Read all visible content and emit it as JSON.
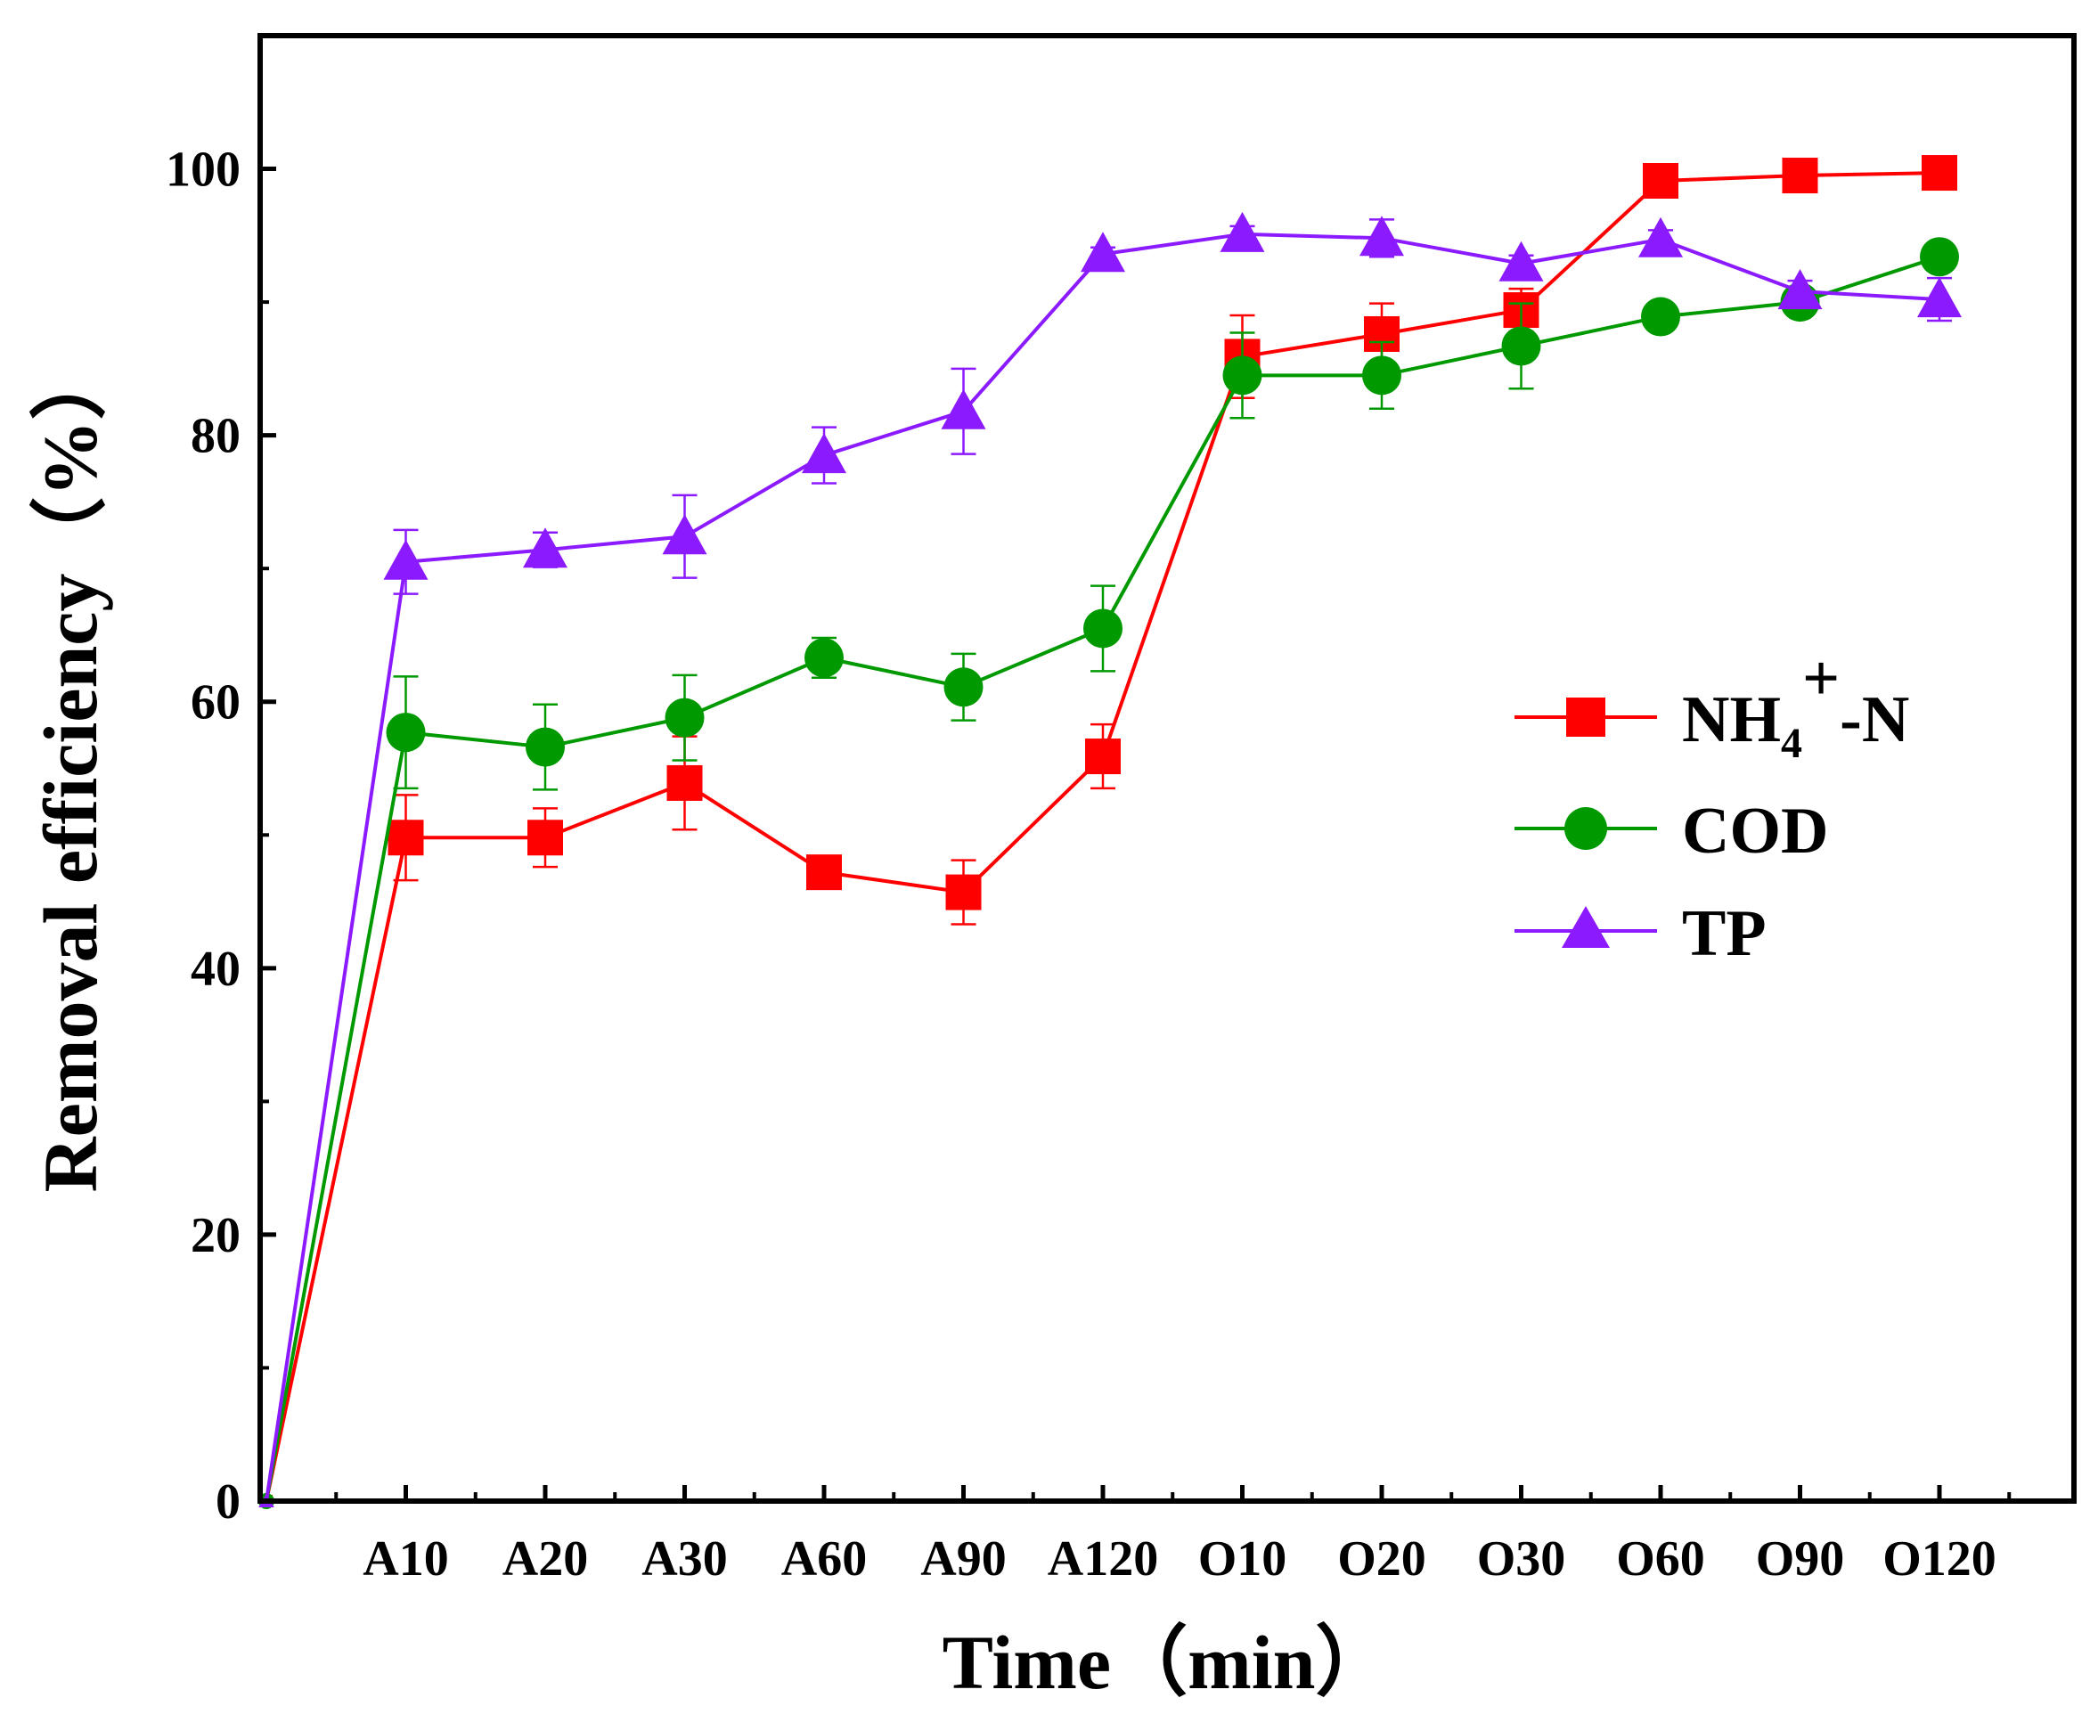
{
  "chart_data": {
    "type": "line",
    "title": "",
    "xlabel": "Time（min）",
    "ylabel": "Removal efficiency（%）",
    "ylim": [
      0,
      110
    ],
    "yticks": [
      0,
      20,
      40,
      60,
      80,
      100
    ],
    "categories": [
      "",
      "A10",
      "A20",
      "A30",
      "A60",
      "A90",
      "A120",
      "O10",
      "O20",
      "O30",
      "O60",
      "O90",
      "O120"
    ],
    "legend_position": "right",
    "legend": {
      "nh4_main": "NH",
      "nh4_sub": "4",
      "nh4_sup": "+",
      "nh4_tail": "-N"
    },
    "series": [
      {
        "name": "NH4+-N",
        "color": "#ff0000",
        "marker": "square",
        "values": [
          0,
          49.8,
          49.8,
          53.9,
          47.2,
          45.7,
          55.9,
          85.9,
          87.6,
          89.4,
          99.1,
          99.5,
          99.7
        ],
        "errors": [
          0,
          3.2,
          2.2,
          3.5,
          1.0,
          2.4,
          2.4,
          3.1,
          2.3,
          1.6,
          0.6,
          0.4,
          0.4
        ]
      },
      {
        "name": "COD",
        "color": "#009900",
        "marker": "circle",
        "values": [
          0,
          57.7,
          56.6,
          58.8,
          63.3,
          61.1,
          65.5,
          84.5,
          84.5,
          86.7,
          88.9,
          90.0,
          93.4
        ],
        "errors": [
          0,
          4.2,
          3.2,
          3.2,
          1.5,
          2.5,
          3.2,
          3.2,
          2.5,
          3.2,
          1.0,
          0.8,
          0.8
        ]
      },
      {
        "name": "TP",
        "color": "#8c1aff",
        "marker": "triangle",
        "values": [
          0,
          70.5,
          71.4,
          72.4,
          78.5,
          81.8,
          93.6,
          95.1,
          94.8,
          92.9,
          94.7,
          90.8,
          90.2
        ],
        "errors": [
          0,
          2.4,
          1.3,
          3.1,
          2.1,
          3.2,
          0.5,
          0.6,
          1.4,
          0.6,
          0.7,
          0.8,
          1.6
        ]
      }
    ]
  }
}
